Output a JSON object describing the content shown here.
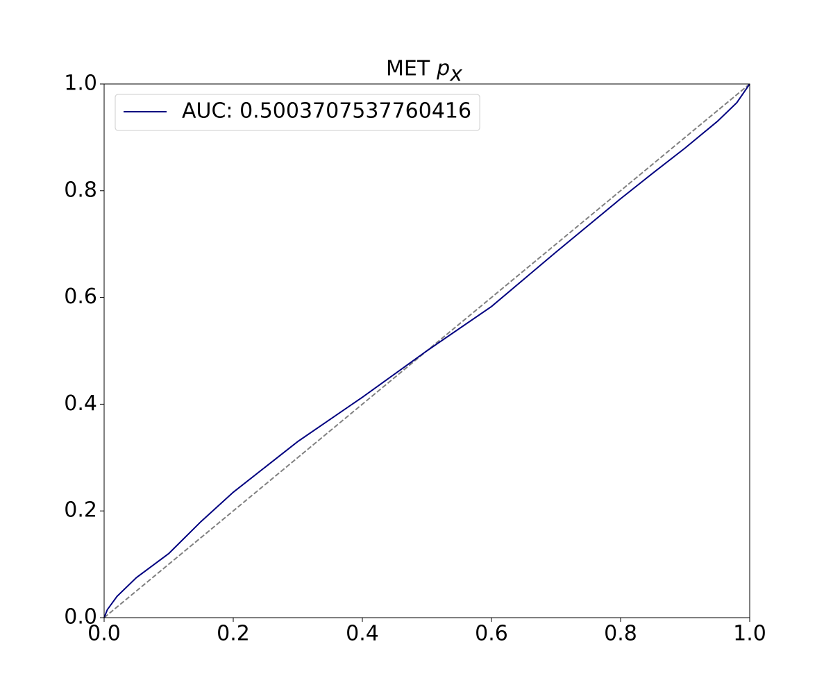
{
  "chart_data": {
    "type": "line",
    "title": {
      "text": "MET",
      "symbol": "p",
      "subscript": "x"
    },
    "x": [
      0,
      0.005,
      0.02,
      0.05,
      0.1,
      0.15,
      0.2,
      0.3,
      0.4,
      0.5,
      0.6,
      0.7,
      0.8,
      0.85,
      0.9,
      0.95,
      0.98,
      1
    ],
    "series": [
      {
        "name": "AUC: 0.5003707537760416",
        "color": "#000080",
        "values": [
          0,
          0.015,
          0.04,
          0.075,
          0.12,
          0.18,
          0.235,
          0.33,
          0.413,
          0.5,
          0.583,
          0.685,
          0.785,
          0.833,
          0.88,
          0.93,
          0.965,
          1
        ]
      }
    ],
    "reference_line": {
      "x": [
        0,
        1
      ],
      "y": [
        0,
        1
      ],
      "color": "#808080",
      "dashed": true
    },
    "xlim": [
      0,
      1
    ],
    "ylim": [
      0,
      1
    ],
    "xticks": [
      {
        "value": 0,
        "label": "0.0"
      },
      0.2,
      0.4,
      0.6,
      0.8,
      {
        "value": 1,
        "label": "1.0"
      }
    ],
    "yticks": [
      {
        "value": 0,
        "label": "0.0"
      },
      0.2,
      0.4,
      0.6,
      0.8,
      {
        "value": 1,
        "label": "1.0"
      }
    ],
    "grid": false,
    "legend": "upper-left"
  }
}
